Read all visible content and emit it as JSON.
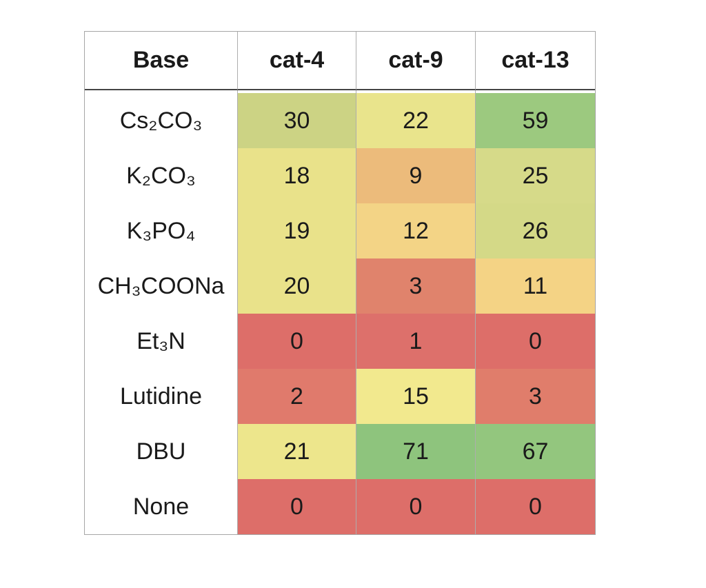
{
  "chart_data": {
    "type": "heatmap",
    "title": "",
    "corner_label": "Base",
    "columns": [
      "cat-4",
      "cat-9",
      "cat-13"
    ],
    "rows": [
      {
        "label": "Cs₂CO₃",
        "values": [
          30,
          22,
          59
        ],
        "colors": [
          "#ccd384",
          "#e9e48c",
          "#9cc97f"
        ]
      },
      {
        "label": "K₂CO₃",
        "values": [
          18,
          9,
          25
        ],
        "colors": [
          "#e9e28a",
          "#ecbb7b",
          "#d6da89"
        ]
      },
      {
        "label": "K₃PO₄",
        "values": [
          19,
          12,
          26
        ],
        "colors": [
          "#e9e28a",
          "#f3d486",
          "#d4d987"
        ]
      },
      {
        "label": "CH₃COONa",
        "values": [
          20,
          3,
          11
        ],
        "colors": [
          "#e9e28a",
          "#e0836c",
          "#f4d385"
        ]
      },
      {
        "label": "Et₃N",
        "values": [
          0,
          1,
          0
        ],
        "colors": [
          "#dd6e69",
          "#dd706b",
          "#dd6e69"
        ]
      },
      {
        "label": "Lutidine",
        "values": [
          2,
          15,
          3
        ],
        "colors": [
          "#e07a6c",
          "#f2e98e",
          "#e07d6b"
        ]
      },
      {
        "label": "DBU",
        "values": [
          21,
          71,
          67
        ],
        "colors": [
          "#ede68c",
          "#8ec47d",
          "#93c67e"
        ]
      },
      {
        "label": "None",
        "values": [
          0,
          0,
          0
        ],
        "colors": [
          "#dd6e69",
          "#dd6e69",
          "#dd6e69"
        ]
      }
    ],
    "value_range": [
      0,
      71
    ],
    "color_scale": {
      "low_color": "#dd6e69",
      "mid_color": "#f2e98e",
      "high_color": "#8ec47d",
      "description": "red-yellow-green 3-color scale mapped to cell value"
    },
    "legend": "none",
    "grid": "vertical gridlines only"
  }
}
